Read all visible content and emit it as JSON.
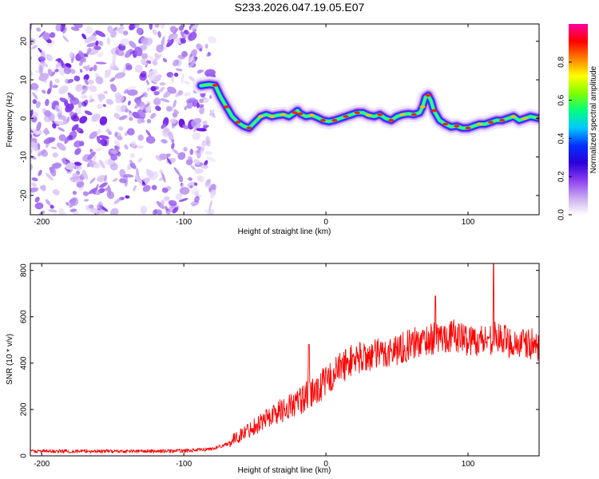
{
  "title": "S233.2026.047.19.05.E07",
  "chart_data": [
    {
      "type": "heatmap",
      "xlabel": "Height of straight line (km)",
      "ylabel": "Frequency (Hz)",
      "xlim": [
        -208,
        150
      ],
      "ylim": [
        -25,
        24.5
      ],
      "xticks": [
        -200,
        -100,
        0,
        100
      ],
      "yticks": [
        -20,
        -10,
        0,
        10,
        20
      ],
      "noise_region_x": [
        -208,
        -88
      ],
      "ridge": {
        "x": [
          -88,
          -82,
          -78,
          -74,
          -70,
          -66,
          -62,
          -58,
          -54,
          -50,
          -46,
          -42,
          -38,
          -34,
          -30,
          -26,
          -22,
          -20,
          -18,
          -14,
          -10,
          -6,
          -2,
          2,
          6,
          10,
          14,
          18,
          22,
          26,
          30,
          34,
          38,
          42,
          46,
          50,
          54,
          58,
          62,
          66,
          68,
          70,
          72,
          74,
          76,
          80,
          84,
          88,
          92,
          96,
          100,
          104,
          108,
          112,
          116,
          120,
          124,
          128,
          132,
          136,
          140,
          144,
          150
        ],
        "y": [
          8.5,
          8.8,
          8.6,
          5.5,
          3.0,
          0.5,
          -1.0,
          -2.0,
          -2.5,
          -1.0,
          0.5,
          1.0,
          0.5,
          0.8,
          1.0,
          0.5,
          1.5,
          2.0,
          1.2,
          0.5,
          0.8,
          0.2,
          -0.5,
          -0.8,
          -0.5,
          0.0,
          0.5,
          1.0,
          1.5,
          1.5,
          0.8,
          0.5,
          1.0,
          0.0,
          -0.5,
          0.5,
          1.0,
          1.2,
          1.0,
          1.5,
          3.0,
          5.5,
          6.0,
          4.5,
          2.0,
          -0.5,
          -1.5,
          -2.2,
          -2.0,
          -2.5,
          -2.5,
          -2.0,
          -1.5,
          -1.5,
          -1.0,
          -0.5,
          -0.5,
          0.0,
          0.5,
          -0.5,
          0.0,
          0.5,
          0.0
        ]
      }
    },
    {
      "type": "colorbar",
      "label": "Normalized spectral amplitude",
      "range": [
        0,
        1
      ],
      "ticks": [
        "0.0",
        "0.2",
        "0.4",
        "0.6",
        "0.8"
      ],
      "colors": [
        "#ffffff",
        "#c8a8f0",
        "#8a3cf0",
        "#2a00d8",
        "#0030ff",
        "#00c8ff",
        "#00ff80",
        "#80ff00",
        "#ffff00",
        "#ff8000",
        "#ff0000",
        "#ff00a0"
      ]
    },
    {
      "type": "line",
      "xlabel": "Height of straight line (km)",
      "ylabel": "SNR (10 * v/v)",
      "xlim": [
        -208,
        150
      ],
      "ylim": [
        0,
        830
      ],
      "xticks": [
        -200,
        -100,
        0,
        100
      ],
      "yticks": [
        0,
        200,
        400,
        600,
        800
      ],
      "color": "#ff0000",
      "trend": {
        "x": [
          -208,
          -120,
          -100,
          -90,
          -80,
          -70,
          -60,
          -50,
          -40,
          -30,
          -20,
          -10,
          0,
          10,
          20,
          30,
          40,
          50,
          60,
          70,
          80,
          90,
          100,
          110,
          120,
          130,
          140,
          150
        ],
        "y": [
          20,
          20,
          22,
          25,
          30,
          50,
          90,
          130,
          170,
          200,
          230,
          270,
          320,
          380,
          420,
          430,
          440,
          460,
          480,
          500,
          510,
          520,
          500,
          500,
          510,
          490,
          480,
          480
        ]
      },
      "spikes": [
        {
          "x": -12,
          "y": 480
        },
        {
          "x": 77,
          "y": 690
        },
        {
          "x": 118,
          "y": 830
        }
      ]
    }
  ]
}
